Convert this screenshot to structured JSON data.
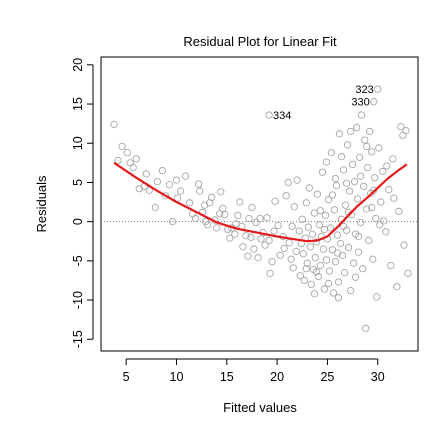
{
  "chart_data": {
    "type": "scatter",
    "title": "Residual Plot for Linear Fit",
    "xlabel": "Fitted values",
    "ylabel": "Residuals",
    "xlim": [
      2.5,
      34
    ],
    "ylim": [
      -16.5,
      21
    ],
    "xticks": [
      5,
      10,
      15,
      20,
      25,
      30
    ],
    "yticks": [
      -15,
      -10,
      -5,
      0,
      5,
      10,
      15,
      20
    ],
    "grid": false,
    "reference_line": {
      "y": 0,
      "style": "dotted"
    },
    "colors": {
      "points": "#a6a6a6",
      "smooth": "#e31a1c",
      "reference": "#808080"
    },
    "smooth_curve": [
      [
        3.8,
        7.5
      ],
      [
        6,
        5.6
      ],
      [
        8,
        4.0
      ],
      [
        10,
        2.5
      ],
      [
        12,
        1.2
      ],
      [
        14,
        -0.1
      ],
      [
        16,
        -0.9
      ],
      [
        18,
        -1.4
      ],
      [
        20,
        -1.9
      ],
      [
        22,
        -2.3
      ],
      [
        23,
        -2.5
      ],
      [
        24,
        -2.4
      ],
      [
        25,
        -1.9
      ],
      [
        26,
        -0.7
      ],
      [
        27,
        0.7
      ],
      [
        28,
        2.0
      ],
      [
        29,
        3.1
      ],
      [
        30,
        4.3
      ],
      [
        31,
        5.5
      ],
      [
        32,
        6.5
      ],
      [
        32.9,
        7.3
      ]
    ],
    "annotations": [
      {
        "label": "334",
        "x": 19.2,
        "y": 13.6
      },
      {
        "label": "323",
        "x": 30.0,
        "y": 16.9
      },
      {
        "label": "330",
        "x": 29.6,
        "y": 15.3
      }
    ],
    "points": [
      [
        3.8,
        12.4
      ],
      [
        4.2,
        7.8
      ],
      [
        4.6,
        9.6
      ],
      [
        5.1,
        8.8
      ],
      [
        5.4,
        7.5
      ],
      [
        5.7,
        6.9
      ],
      [
        6.0,
        8.0
      ],
      [
        6.3,
        4.2
      ],
      [
        6.8,
        4.5
      ],
      [
        7.3,
        4.0
      ],
      [
        7.9,
        1.8
      ],
      [
        8.1,
        5.1
      ],
      [
        8.6,
        6.5
      ],
      [
        8.9,
        3.3
      ],
      [
        9.6,
        0.0
      ],
      [
        10.0,
        5.3
      ],
      [
        10.1,
        3.0
      ],
      [
        10.4,
        3.9
      ],
      [
        10.9,
        5.8
      ],
      [
        11.3,
        2.4
      ],
      [
        11.9,
        0.4
      ],
      [
        12.2,
        4.8
      ],
      [
        12.3,
        3.9
      ],
      [
        12.6,
        1.2
      ],
      [
        12.9,
        0.0
      ],
      [
        13.1,
        -0.4
      ],
      [
        13.3,
        2.4
      ],
      [
        13.5,
        3.1
      ],
      [
        13.8,
        0.2
      ],
      [
        14.0,
        -0.8
      ],
      [
        14.3,
        1.0
      ],
      [
        14.4,
        3.8
      ],
      [
        14.8,
        0.9
      ],
      [
        15.1,
        -1.0
      ],
      [
        15.3,
        -2.1
      ],
      [
        15.5,
        -0.8
      ],
      [
        15.8,
        -1.6
      ],
      [
        16.1,
        0.8
      ],
      [
        16.3,
        2.5
      ],
      [
        16.5,
        -0.6
      ],
      [
        16.6,
        -3.2
      ],
      [
        16.9,
        -1.8
      ],
      [
        17.2,
        0.4
      ],
      [
        17.4,
        -2.0
      ],
      [
        17.5,
        1.8
      ],
      [
        17.7,
        -3.5
      ],
      [
        17.9,
        -0.1
      ],
      [
        18.1,
        -4.6
      ],
      [
        18.3,
        0.4
      ],
      [
        18.6,
        -1.4
      ],
      [
        18.8,
        -3.0
      ],
      [
        19.0,
        0.5
      ],
      [
        19.2,
        13.6
      ],
      [
        19.2,
        -2.4
      ],
      [
        19.3,
        -6.6
      ],
      [
        19.5,
        -5.1
      ],
      [
        19.7,
        -1.2
      ],
      [
        19.8,
        2.6
      ],
      [
        20.1,
        -0.5
      ],
      [
        20.3,
        -4.3
      ],
      [
        20.6,
        -1.9
      ],
      [
        20.9,
        3.3
      ],
      [
        21.1,
        5.0
      ],
      [
        21.2,
        -2.7
      ],
      [
        21.4,
        -4.8
      ],
      [
        21.5,
        -0.6
      ],
      [
        21.7,
        1.9
      ],
      [
        21.9,
        -3.8
      ],
      [
        22.0,
        5.3
      ],
      [
        22.2,
        -1.2
      ],
      [
        22.3,
        -6.9
      ],
      [
        22.5,
        0.3
      ],
      [
        22.6,
        -4.1
      ],
      [
        22.7,
        -7.5
      ],
      [
        22.8,
        -2.1
      ],
      [
        22.9,
        2.4
      ],
      [
        23.0,
        -5.3
      ],
      [
        23.1,
        -0.7
      ],
      [
        23.2,
        4.3
      ],
      [
        23.3,
        -3.2
      ],
      [
        23.4,
        -8.0
      ],
      [
        23.5,
        -1.6
      ],
      [
        23.6,
        -6.1
      ],
      [
        23.7,
        1.1
      ],
      [
        23.8,
        -4.6
      ],
      [
        23.9,
        -2.6
      ],
      [
        24.0,
        3.5
      ],
      [
        24.1,
        -7.0
      ],
      [
        24.2,
        -0.4
      ],
      [
        24.3,
        -5.6
      ],
      [
        24.4,
        -1.9
      ],
      [
        24.5,
        6.3
      ],
      [
        24.6,
        -3.5
      ],
      [
        24.7,
        -8.6
      ],
      [
        24.8,
        0.8
      ],
      [
        24.9,
        -4.9
      ],
      [
        25.0,
        -2.2
      ],
      [
        25.1,
        2.8
      ],
      [
        25.2,
        -6.3
      ],
      [
        25.3,
        -0.8
      ],
      [
        25.4,
        8.8
      ],
      [
        25.5,
        -3.6
      ],
      [
        25.6,
        -9.1
      ],
      [
        25.7,
        1.5
      ],
      [
        25.8,
        -5.1
      ],
      [
        25.9,
        4.6
      ],
      [
        26.0,
        -1.7
      ],
      [
        26.1,
        -7.7
      ],
      [
        26.2,
        11.2
      ],
      [
        26.3,
        -2.8
      ],
      [
        26.4,
        0.3
      ],
      [
        26.5,
        -4.3
      ],
      [
        26.6,
        6.6
      ],
      [
        26.7,
        -6.5
      ],
      [
        26.8,
        2.1
      ],
      [
        26.9,
        -1.1
      ],
      [
        27.0,
        9.8
      ],
      [
        27.1,
        -3.3
      ],
      [
        27.2,
        3.9
      ],
      [
        27.3,
        -8.8
      ],
      [
        27.4,
        0.9
      ],
      [
        27.5,
        7.3
      ],
      [
        27.6,
        -5.3
      ],
      [
        27.7,
        5.1
      ],
      [
        27.8,
        -1.6
      ],
      [
        27.9,
        12.0
      ],
      [
        28.0,
        2.9
      ],
      [
        28.1,
        -3.9
      ],
      [
        28.2,
        8.2
      ],
      [
        28.3,
        -0.1
      ],
      [
        28.4,
        13.6
      ],
      [
        28.5,
        -6.0
      ],
      [
        28.6,
        4.5
      ],
      [
        28.7,
        10.4
      ],
      [
        28.8,
        -13.6
      ],
      [
        28.9,
        1.6
      ],
      [
        29.0,
        6.9
      ],
      [
        29.1,
        -2.4
      ],
      [
        29.2,
        11.5
      ],
      [
        29.3,
        3.6
      ],
      [
        29.4,
        8.9
      ],
      [
        29.5,
        -4.8
      ],
      [
        29.6,
        15.3
      ],
      [
        29.7,
        5.6
      ],
      [
        29.8,
        0.4
      ],
      [
        30.0,
        16.9
      ],
      [
        30.1,
        9.4
      ],
      [
        30.3,
        2.5
      ],
      [
        30.5,
        6.4
      ],
      [
        30.8,
        -1.3
      ],
      [
        31.1,
        4.1
      ],
      [
        31.5,
        8.0
      ],
      [
        31.9,
        -8.3
      ],
      [
        32.1,
        1.3
      ],
      [
        32.3,
        12.1
      ],
      [
        32.5,
        11.0
      ],
      [
        32.6,
        -3.0
      ],
      [
        32.8,
        11.6
      ],
      [
        33.0,
        -6.6
      ],
      [
        31.3,
        -5.6
      ],
      [
        30.6,
        0.1
      ],
      [
        29.9,
        -9.6
      ],
      [
        27.3,
        11.5
      ],
      [
        26.4,
        8.3
      ],
      [
        25.8,
        5.5
      ],
      [
        24.9,
        7.6
      ],
      [
        23.9,
        -6.4
      ],
      [
        22.4,
        -2.8
      ],
      [
        21.6,
        -5.9
      ],
      [
        20.7,
        -3.4
      ],
      [
        18.4,
        -2.2
      ],
      [
        17.1,
        -4.4
      ],
      [
        15.9,
        -0.3
      ],
      [
        14.6,
        1.7
      ],
      [
        12.8,
        2.1
      ],
      [
        11.6,
        1.0
      ],
      [
        9.3,
        4.7
      ],
      [
        7.0,
        6.1
      ],
      [
        25.5,
        3.4
      ],
      [
        26.9,
        4.9
      ],
      [
        28.9,
        9.6
      ],
      [
        30.9,
        7.1
      ],
      [
        24.3,
        1.4
      ],
      [
        23.7,
        -9.2
      ],
      [
        26.1,
        -9.7
      ],
      [
        27.8,
        -7.1
      ],
      [
        25.1,
        -7.9
      ],
      [
        22.9,
        -6.0
      ],
      [
        28.3,
        5.8
      ],
      [
        29.6,
        4.0
      ],
      [
        31.6,
        3.0
      ],
      [
        26.6,
        -0.6
      ],
      [
        24.7,
        -1.0
      ],
      [
        27.1,
        1.2
      ],
      [
        28.1,
        -1.9
      ],
      [
        29.4,
        1.8
      ],
      [
        30.2,
        -0.4
      ],
      [
        26.0,
        -4.0
      ]
    ]
  }
}
